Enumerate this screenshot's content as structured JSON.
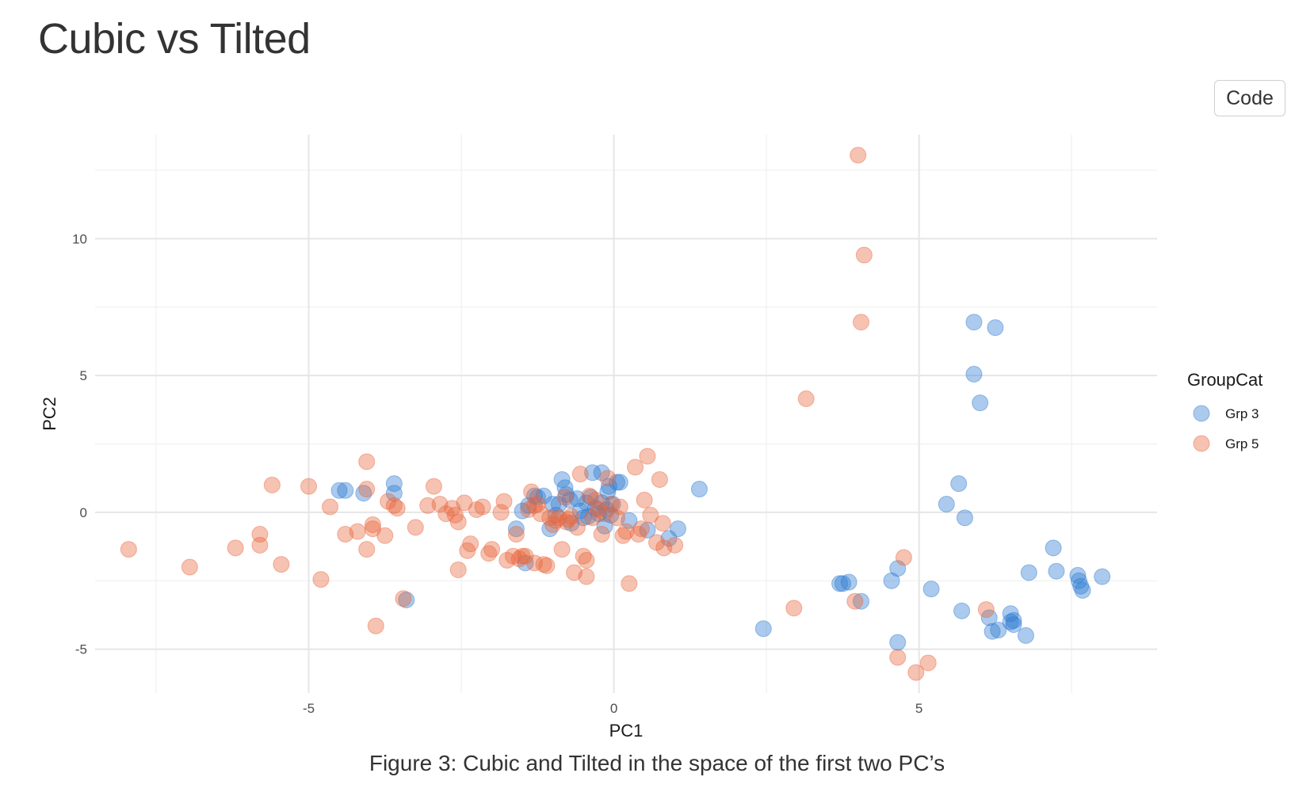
{
  "page": {
    "title": "Cubic vs Tilted",
    "code_button_label": "Code",
    "caption": "Figure 3: Cubic and Tilted in the space of the first two PC’s"
  },
  "chart_data": {
    "type": "scatter",
    "title": "",
    "xlabel": "PC1",
    "ylabel": "PC2",
    "xlim": [
      -8.5,
      8.9
    ],
    "ylim": [
      -6.6,
      13.8
    ],
    "x_ticks": [
      -5,
      0,
      5
    ],
    "x_tick_labels": [
      "-5",
      "0",
      "5"
    ],
    "y_ticks": [
      -5,
      0,
      5,
      10
    ],
    "y_tick_labels": [
      "-5",
      "0",
      "5",
      "10"
    ],
    "grid": true,
    "legend": {
      "title": "GroupCat",
      "position": "right"
    },
    "series": [
      {
        "name": "Grp 3",
        "color": "#2c7bd1",
        "points": [
          [
            -4.5,
            0.8
          ],
          [
            -4.4,
            0.8
          ],
          [
            -4.1,
            0.7
          ],
          [
            -3.6,
            1.05
          ],
          [
            -3.6,
            0.7
          ],
          [
            -3.4,
            -3.2
          ],
          [
            -1.6,
            -0.6
          ],
          [
            -1.45,
            -1.85
          ],
          [
            -1.5,
            0.05
          ],
          [
            -1.4,
            0.25
          ],
          [
            -1.3,
            0.6
          ],
          [
            -1.25,
            0.55
          ],
          [
            -1.15,
            0.6
          ],
          [
            -1.05,
            -0.6
          ],
          [
            -1.0,
            0.3
          ],
          [
            -0.95,
            -0.1
          ],
          [
            -0.9,
            0.3
          ],
          [
            -0.85,
            1.2
          ],
          [
            -0.8,
            0.9
          ],
          [
            -0.78,
            0.65
          ],
          [
            -0.72,
            0.45
          ],
          [
            -0.7,
            -0.4
          ],
          [
            -0.6,
            0.5
          ],
          [
            -0.55,
            0.05
          ],
          [
            -0.5,
            -0.2
          ],
          [
            -0.45,
            0.35
          ],
          [
            -0.42,
            -0.15
          ],
          [
            -0.38,
            0.55
          ],
          [
            -0.35,
            1.45
          ],
          [
            -0.3,
            0.15
          ],
          [
            -0.25,
            -0.05
          ],
          [
            -0.2,
            0.35
          ],
          [
            -0.2,
            1.45
          ],
          [
            -0.15,
            -0.5
          ],
          [
            -0.12,
            0.1
          ],
          [
            -0.1,
            0.75
          ],
          [
            -0.08,
            0.95
          ],
          [
            -0.05,
            -0.1
          ],
          [
            -0.02,
            0.3
          ],
          [
            0.05,
            1.1
          ],
          [
            0.1,
            1.1
          ],
          [
            0.25,
            -0.3
          ],
          [
            0.55,
            -0.65
          ],
          [
            0.9,
            -0.95
          ],
          [
            1.05,
            -0.6
          ],
          [
            1.4,
            0.85
          ],
          [
            2.45,
            -4.25
          ],
          [
            3.7,
            -2.6
          ],
          [
            3.75,
            -2.6
          ],
          [
            3.85,
            -2.55
          ],
          [
            4.05,
            -3.25
          ],
          [
            4.55,
            -2.5
          ],
          [
            4.65,
            -4.75
          ],
          [
            4.65,
            -2.05
          ],
          [
            5.2,
            -2.8
          ],
          [
            5.45,
            0.3
          ],
          [
            5.65,
            1.05
          ],
          [
            5.7,
            -3.6
          ],
          [
            5.75,
            -0.2
          ],
          [
            5.9,
            6.95
          ],
          [
            5.9,
            5.05
          ],
          [
            6.0,
            4.0
          ],
          [
            6.15,
            -3.85
          ],
          [
            6.2,
            -4.35
          ],
          [
            6.25,
            6.75
          ],
          [
            6.3,
            -4.3
          ],
          [
            6.5,
            -3.7
          ],
          [
            6.5,
            -4.0
          ],
          [
            6.55,
            -3.95
          ],
          [
            6.55,
            -4.1
          ],
          [
            6.75,
            -4.5
          ],
          [
            6.8,
            -2.2
          ],
          [
            7.2,
            -1.3
          ],
          [
            7.25,
            -2.15
          ],
          [
            7.6,
            -2.3
          ],
          [
            7.62,
            -2.5
          ],
          [
            7.65,
            -2.7
          ],
          [
            7.68,
            -2.85
          ],
          [
            8.0,
            -2.35
          ]
        ]
      },
      {
        "name": "Grp 5",
        "color": "#e8673d",
        "points": [
          [
            -7.95,
            -1.35
          ],
          [
            -6.95,
            -2.0
          ],
          [
            -6.2,
            -1.3
          ],
          [
            -5.8,
            -0.8
          ],
          [
            -5.8,
            -1.2
          ],
          [
            -5.6,
            1.0
          ],
          [
            -5.45,
            -1.9
          ],
          [
            -5.0,
            0.95
          ],
          [
            -4.8,
            -2.45
          ],
          [
            -4.65,
            0.2
          ],
          [
            -4.4,
            -0.8
          ],
          [
            -4.2,
            -0.7
          ],
          [
            -4.05,
            0.85
          ],
          [
            -4.05,
            1.85
          ],
          [
            -4.05,
            -1.35
          ],
          [
            -3.95,
            -0.6
          ],
          [
            -3.95,
            -0.45
          ],
          [
            -3.9,
            -4.15
          ],
          [
            -3.75,
            -0.85
          ],
          [
            -3.7,
            0.4
          ],
          [
            -3.6,
            0.25
          ],
          [
            -3.55,
            0.15
          ],
          [
            -3.45,
            -3.15
          ],
          [
            -3.25,
            -0.55
          ],
          [
            -3.05,
            0.25
          ],
          [
            -2.95,
            0.95
          ],
          [
            -2.85,
            0.3
          ],
          [
            -2.75,
            -0.05
          ],
          [
            -2.65,
            0.15
          ],
          [
            -2.6,
            -0.1
          ],
          [
            -2.55,
            -0.35
          ],
          [
            -2.55,
            -2.1
          ],
          [
            -2.45,
            0.35
          ],
          [
            -2.4,
            -1.4
          ],
          [
            -2.35,
            -1.15
          ],
          [
            -2.25,
            0.1
          ],
          [
            -2.15,
            0.2
          ],
          [
            -2.05,
            -1.5
          ],
          [
            -2.0,
            -1.35
          ],
          [
            -1.85,
            0.0
          ],
          [
            -1.8,
            0.4
          ],
          [
            -1.75,
            -1.75
          ],
          [
            -1.65,
            -1.6
          ],
          [
            -1.6,
            -0.8
          ],
          [
            -1.55,
            -1.7
          ],
          [
            -1.5,
            -1.6
          ],
          [
            -1.45,
            -1.6
          ],
          [
            -1.4,
            0.1
          ],
          [
            -1.35,
            0.75
          ],
          [
            -1.3,
            0.25
          ],
          [
            -1.3,
            -1.85
          ],
          [
            -1.25,
            0.3
          ],
          [
            -1.2,
            -0.05
          ],
          [
            -1.15,
            -1.9
          ],
          [
            -1.1,
            -1.95
          ],
          [
            -1.05,
            -0.2
          ],
          [
            -1.0,
            -0.45
          ],
          [
            -0.95,
            -0.3
          ],
          [
            -0.9,
            -0.2
          ],
          [
            -0.85,
            -1.35
          ],
          [
            -0.8,
            0.55
          ],
          [
            -0.78,
            -0.35
          ],
          [
            -0.75,
            -0.25
          ],
          [
            -0.7,
            -0.15
          ],
          [
            -0.65,
            -2.2
          ],
          [
            -0.6,
            -0.55
          ],
          [
            -0.55,
            1.4
          ],
          [
            -0.5,
            -1.6
          ],
          [
            -0.45,
            -1.75
          ],
          [
            -0.45,
            -2.35
          ],
          [
            -0.4,
            0.6
          ],
          [
            -0.35,
            -0.2
          ],
          [
            -0.3,
            0.45
          ],
          [
            -0.25,
            0.1
          ],
          [
            -0.2,
            -0.8
          ],
          [
            -0.15,
            -0.05
          ],
          [
            -0.1,
            1.25
          ],
          [
            -0.05,
            0.3
          ],
          [
            0.05,
            -0.2
          ],
          [
            0.1,
            0.2
          ],
          [
            0.15,
            -0.85
          ],
          [
            0.2,
            -0.7
          ],
          [
            0.25,
            -2.6
          ],
          [
            0.35,
            1.65
          ],
          [
            0.4,
            -0.8
          ],
          [
            0.45,
            -0.6
          ],
          [
            0.5,
            0.45
          ],
          [
            0.55,
            2.05
          ],
          [
            0.6,
            -0.1
          ],
          [
            0.7,
            -1.1
          ],
          [
            0.75,
            1.2
          ],
          [
            0.8,
            -0.4
          ],
          [
            0.82,
            -1.3
          ],
          [
            1.0,
            -1.2
          ],
          [
            2.95,
            -3.5
          ],
          [
            3.15,
            4.15
          ],
          [
            3.95,
            -3.25
          ],
          [
            4.0,
            13.05
          ],
          [
            4.05,
            6.95
          ],
          [
            4.1,
            9.4
          ],
          [
            4.65,
            -5.3
          ],
          [
            4.75,
            -1.65
          ],
          [
            4.95,
            -5.85
          ],
          [
            5.15,
            -5.5
          ],
          [
            6.1,
            -3.55
          ]
        ]
      }
    ]
  }
}
